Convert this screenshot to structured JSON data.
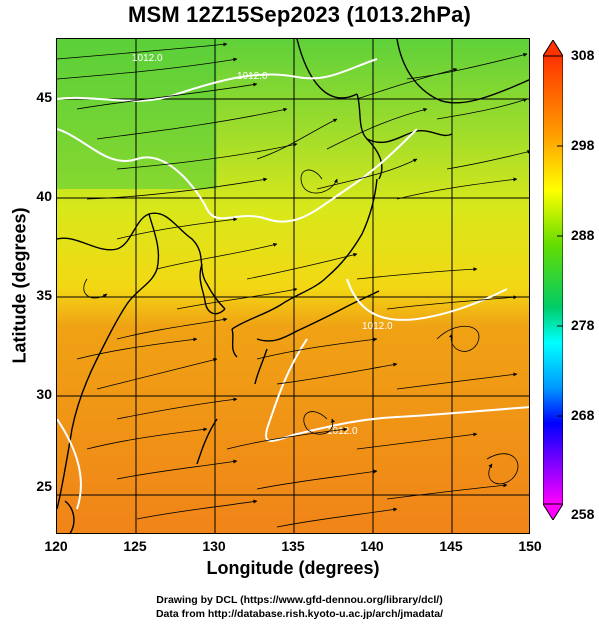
{
  "title": "MSM 12Z15Sep2023 (1013.2hPa)",
  "map": {
    "xlabel": "Longitude (degrees)",
    "ylabel": "Latitude  (degrees)",
    "x_ticks": [
      "120",
      "125",
      "130",
      "135",
      "140",
      "145",
      "150"
    ],
    "y_ticks": [
      "45",
      "40",
      "35",
      "30",
      "25"
    ],
    "xlim": [
      120,
      150
    ],
    "ylim": [
      22.5,
      47.5
    ],
    "isobar_labels": [
      "1012.0",
      "1012.0",
      "1012.0",
      "1012.0"
    ],
    "colorbar": {
      "ticks": [
        "308",
        "298",
        "288",
        "278",
        "268",
        "258"
      ],
      "range": [
        258,
        308
      ],
      "colors": [
        "#ff00ff",
        "#0000ff",
        "#00ffff",
        "#00cc00",
        "#ffff00",
        "#ff9900",
        "#ff3300"
      ]
    }
  },
  "credits": {
    "line1": "Drawing by DCL (https://www.gfd-dennou.org/library/dcl/)",
    "line2": "Data from http://database.rish.kyoto-u.ac.jp/arch/jmadata/"
  }
}
